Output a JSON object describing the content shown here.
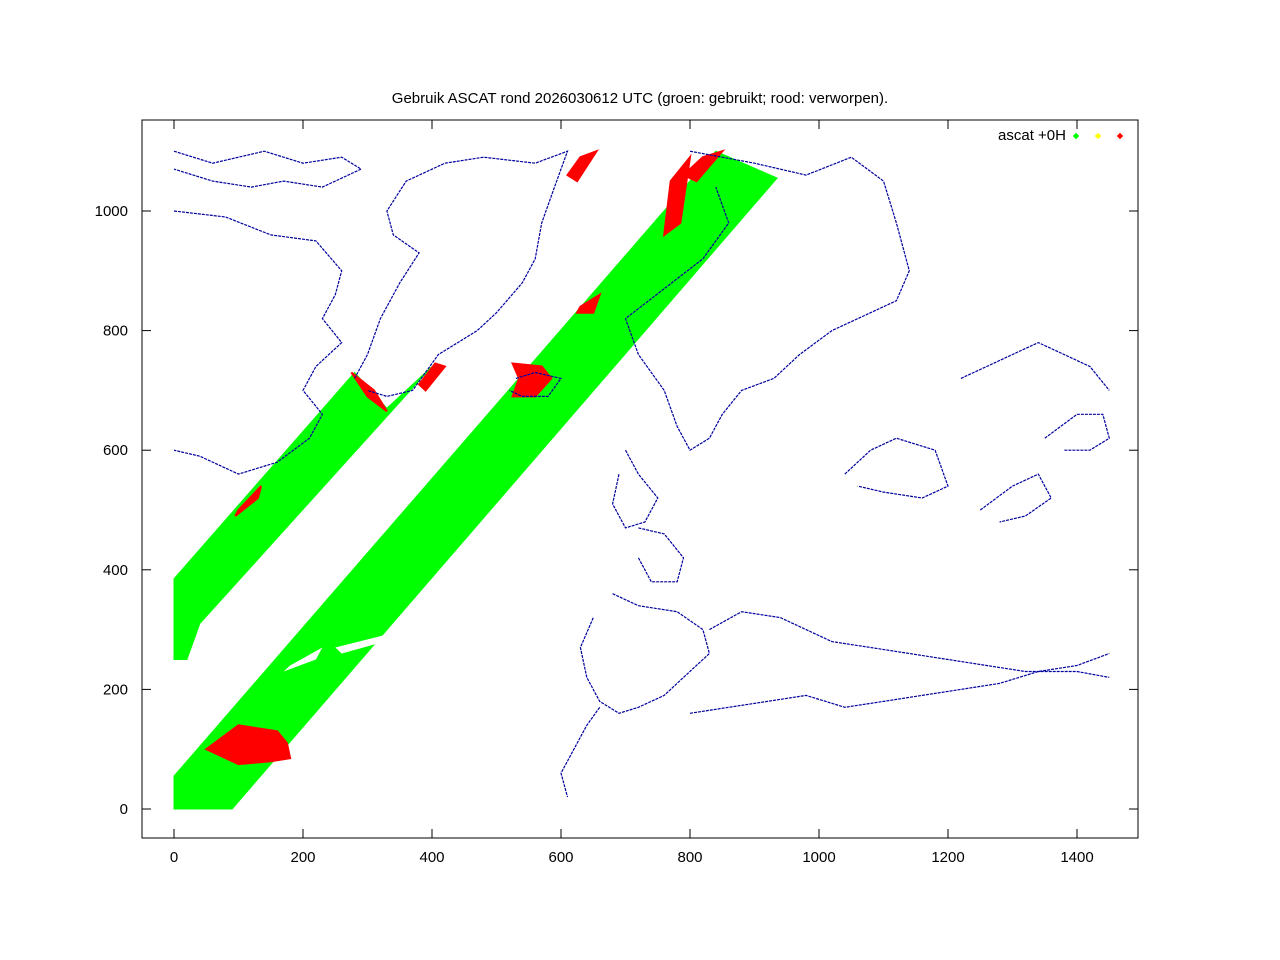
{
  "chart_data": {
    "type": "scatter",
    "title": "Gebruik ASCAT rond 2026030612 UTC (groen: gebruikt; rood: verworpen).",
    "xlabel": "",
    "ylabel": "",
    "xlim": [
      -50,
      1490
    ],
    "ylim": [
      -50,
      1110
    ],
    "x_ticks": [
      0,
      200,
      400,
      600,
      800,
      1000,
      1200,
      1400
    ],
    "y_ticks": [
      0,
      200,
      400,
      600,
      800,
      1000
    ],
    "grid": false,
    "legend_position": "top-right",
    "legend": [
      {
        "label": "ascat +0H",
        "color": "#00ff00"
      },
      {
        "label": "",
        "color": "#ffff00"
      },
      {
        "label": "",
        "color": "#ff0000"
      }
    ],
    "colors": {
      "used": "#00ff00",
      "rejected": "#ff0000",
      "coastline": "#0000a0"
    },
    "swaths": [
      {
        "name": "",
        "status": "used",
        "polygon": [
          [
            0,
            250
          ],
          [
            0,
            385
          ],
          [
            280,
            730
          ],
          [
            330,
            670
          ],
          [
            400,
            740
          ],
          [
            40,
            310
          ],
          [
            20,
            250
          ]
        ]
      },
      {
        "name": "",
        "status": "used",
        "polygon": [
          [
            0,
            0
          ],
          [
            0,
            55
          ],
          [
            840,
            1100
          ],
          [
            935,
            1055
          ],
          [
            90,
            0
          ]
        ]
      }
    ],
    "rejected_regions": [
      {
        "polygon": [
          [
            50,
            100
          ],
          [
            100,
            140
          ],
          [
            160,
            130
          ],
          [
            175,
            110
          ],
          [
            180,
            85
          ],
          [
            150,
            80
          ],
          [
            100,
            75
          ]
        ]
      },
      {
        "polygon": [
          [
            95,
            490
          ],
          [
            130,
            520
          ],
          [
            135,
            540
          ],
          [
            100,
            500
          ]
        ]
      },
      {
        "polygon": [
          [
            275,
            730
          ],
          [
            300,
            690
          ],
          [
            330,
            665
          ],
          [
            310,
            700
          ]
        ]
      },
      {
        "polygon": [
          [
            390,
            700
          ],
          [
            420,
            740
          ],
          [
            405,
            745
          ],
          [
            380,
            710
          ]
        ]
      },
      {
        "polygon": [
          [
            525,
            745
          ],
          [
            570,
            740
          ],
          [
            585,
            720
          ],
          [
            560,
            690
          ],
          [
            525,
            690
          ],
          [
            535,
            720
          ]
        ]
      },
      {
        "polygon": [
          [
            630,
            1090
          ],
          [
            655,
            1100
          ],
          [
            625,
            1050
          ],
          [
            610,
            1060
          ]
        ]
      },
      {
        "polygon": [
          [
            630,
            840
          ],
          [
            660,
            860
          ],
          [
            650,
            830
          ],
          [
            625,
            830
          ]
        ]
      },
      {
        "polygon": [
          [
            770,
            1050
          ],
          [
            800,
            1090
          ],
          [
            785,
            980
          ],
          [
            760,
            960
          ]
        ]
      },
      {
        "polygon": [
          [
            820,
            1090
          ],
          [
            850,
            1100
          ],
          [
            810,
            1050
          ],
          [
            790,
            1060
          ]
        ]
      }
    ],
    "gaps_in_swath": [
      {
        "polygon": [
          [
            250,
            270
          ],
          [
            360,
            300
          ],
          [
            360,
            290
          ],
          [
            260,
            260
          ]
        ]
      },
      {
        "polygon": [
          [
            180,
            240
          ],
          [
            230,
            270
          ],
          [
            220,
            250
          ],
          [
            170,
            230
          ]
        ]
      }
    ],
    "coastlines": [
      {
        "name": "",
        "points": [
          [
            0,
            1100
          ],
          [
            60,
            1080
          ],
          [
            140,
            1100
          ],
          [
            200,
            1080
          ],
          [
            260,
            1090
          ],
          [
            290,
            1070
          ],
          [
            230,
            1040
          ],
          [
            170,
            1050
          ],
          [
            120,
            1040
          ],
          [
            60,
            1050
          ],
          [
            0,
            1070
          ]
        ]
      },
      {
        "name": "",
        "points": [
          [
            0,
            1000
          ],
          [
            80,
            990
          ],
          [
            150,
            960
          ],
          [
            220,
            950
          ],
          [
            260,
            900
          ],
          [
            250,
            860
          ],
          [
            230,
            820
          ],
          [
            260,
            780
          ],
          [
            220,
            740
          ],
          [
            200,
            700
          ],
          [
            230,
            660
          ],
          [
            210,
            620
          ],
          [
            160,
            580
          ],
          [
            100,
            560
          ],
          [
            40,
            590
          ],
          [
            0,
            600
          ]
        ]
      },
      {
        "name": "",
        "points": [
          [
            280,
            720
          ],
          [
            300,
            760
          ],
          [
            320,
            820
          ],
          [
            350,
            880
          ],
          [
            380,
            930
          ],
          [
            340,
            960
          ],
          [
            330,
            1000
          ],
          [
            360,
            1050
          ],
          [
            420,
            1080
          ],
          [
            480,
            1090
          ],
          [
            560,
            1080
          ],
          [
            610,
            1100
          ],
          [
            590,
            1040
          ],
          [
            570,
            980
          ],
          [
            560,
            920
          ],
          [
            540,
            880
          ],
          [
            500,
            830
          ],
          [
            470,
            800
          ],
          [
            440,
            780
          ],
          [
            410,
            760
          ],
          [
            370,
            700
          ],
          [
            330,
            690
          ],
          [
            300,
            700
          ]
        ]
      },
      {
        "name": "",
        "points": [
          [
            530,
            720
          ],
          [
            560,
            730
          ],
          [
            600,
            720
          ],
          [
            580,
            690
          ],
          [
            540,
            690
          ],
          [
            520,
            700
          ]
        ]
      },
      {
        "name": "",
        "points": [
          [
            800,
            1100
          ],
          [
            900,
            1080
          ],
          [
            980,
            1060
          ],
          [
            1050,
            1090
          ],
          [
            1100,
            1050
          ],
          [
            1120,
            980
          ],
          [
            1140,
            900
          ],
          [
            1120,
            850
          ],
          [
            1080,
            830
          ],
          [
            1020,
            800
          ],
          [
            970,
            760
          ],
          [
            930,
            720
          ],
          [
            880,
            700
          ],
          [
            850,
            660
          ],
          [
            830,
            620
          ],
          [
            800,
            600
          ],
          [
            780,
            640
          ],
          [
            760,
            700
          ],
          [
            720,
            760
          ],
          [
            700,
            820
          ],
          [
            760,
            870
          ],
          [
            820,
            920
          ],
          [
            860,
            980
          ],
          [
            840,
            1040
          ]
        ]
      },
      {
        "name": "",
        "points": [
          [
            700,
            600
          ],
          [
            720,
            560
          ],
          [
            750,
            520
          ],
          [
            730,
            480
          ],
          [
            700,
            470
          ],
          [
            680,
            510
          ],
          [
            690,
            560
          ]
        ]
      },
      {
        "name": "",
        "points": [
          [
            720,
            470
          ],
          [
            760,
            460
          ],
          [
            790,
            420
          ],
          [
            780,
            380
          ],
          [
            740,
            380
          ],
          [
            720,
            420
          ]
        ]
      },
      {
        "name": "",
        "points": [
          [
            680,
            360
          ],
          [
            720,
            340
          ],
          [
            780,
            330
          ],
          [
            820,
            300
          ],
          [
            830,
            260
          ],
          [
            790,
            220
          ],
          [
            760,
            190
          ],
          [
            720,
            170
          ],
          [
            690,
            160
          ],
          [
            660,
            180
          ],
          [
            640,
            220
          ],
          [
            630,
            270
          ],
          [
            650,
            320
          ]
        ]
      },
      {
        "name": "",
        "points": [
          [
            830,
            300
          ],
          [
            880,
            330
          ],
          [
            940,
            320
          ],
          [
            980,
            300
          ],
          [
            1020,
            280
          ],
          [
            1080,
            270
          ],
          [
            1140,
            260
          ],
          [
            1200,
            250
          ],
          [
            1260,
            240
          ],
          [
            1320,
            230
          ],
          [
            1400,
            230
          ],
          [
            1450,
            220
          ]
        ]
      },
      {
        "name": "",
        "points": [
          [
            660,
            170
          ],
          [
            640,
            140
          ],
          [
            620,
            100
          ],
          [
            600,
            60
          ],
          [
            610,
            20
          ]
        ]
      },
      {
        "name": "",
        "points": [
          [
            800,
            160
          ],
          [
            860,
            170
          ],
          [
            920,
            180
          ],
          [
            980,
            190
          ],
          [
            1040,
            170
          ],
          [
            1100,
            180
          ],
          [
            1160,
            190
          ],
          [
            1220,
            200
          ],
          [
            1280,
            210
          ],
          [
            1340,
            230
          ],
          [
            1400,
            240
          ],
          [
            1450,
            260
          ]
        ]
      },
      {
        "name": "",
        "points": [
          [
            1040,
            560
          ],
          [
            1080,
            600
          ],
          [
            1120,
            620
          ],
          [
            1180,
            600
          ],
          [
            1200,
            540
          ],
          [
            1160,
            520
          ],
          [
            1100,
            530
          ],
          [
            1060,
            540
          ]
        ]
      },
      {
        "name": "",
        "points": [
          [
            1220,
            720
          ],
          [
            1260,
            740
          ],
          [
            1300,
            760
          ],
          [
            1340,
            780
          ],
          [
            1380,
            760
          ],
          [
            1420,
            740
          ],
          [
            1450,
            700
          ]
        ]
      },
      {
        "name": "",
        "points": [
          [
            1250,
            500
          ],
          [
            1300,
            540
          ],
          [
            1340,
            560
          ],
          [
            1360,
            520
          ],
          [
            1320,
            490
          ],
          [
            1280,
            480
          ]
        ]
      },
      {
        "name": "",
        "points": [
          [
            1350,
            620
          ],
          [
            1400,
            660
          ],
          [
            1440,
            660
          ],
          [
            1450,
            620
          ],
          [
            1420,
            600
          ],
          [
            1380,
            600
          ]
        ]
      }
    ]
  }
}
